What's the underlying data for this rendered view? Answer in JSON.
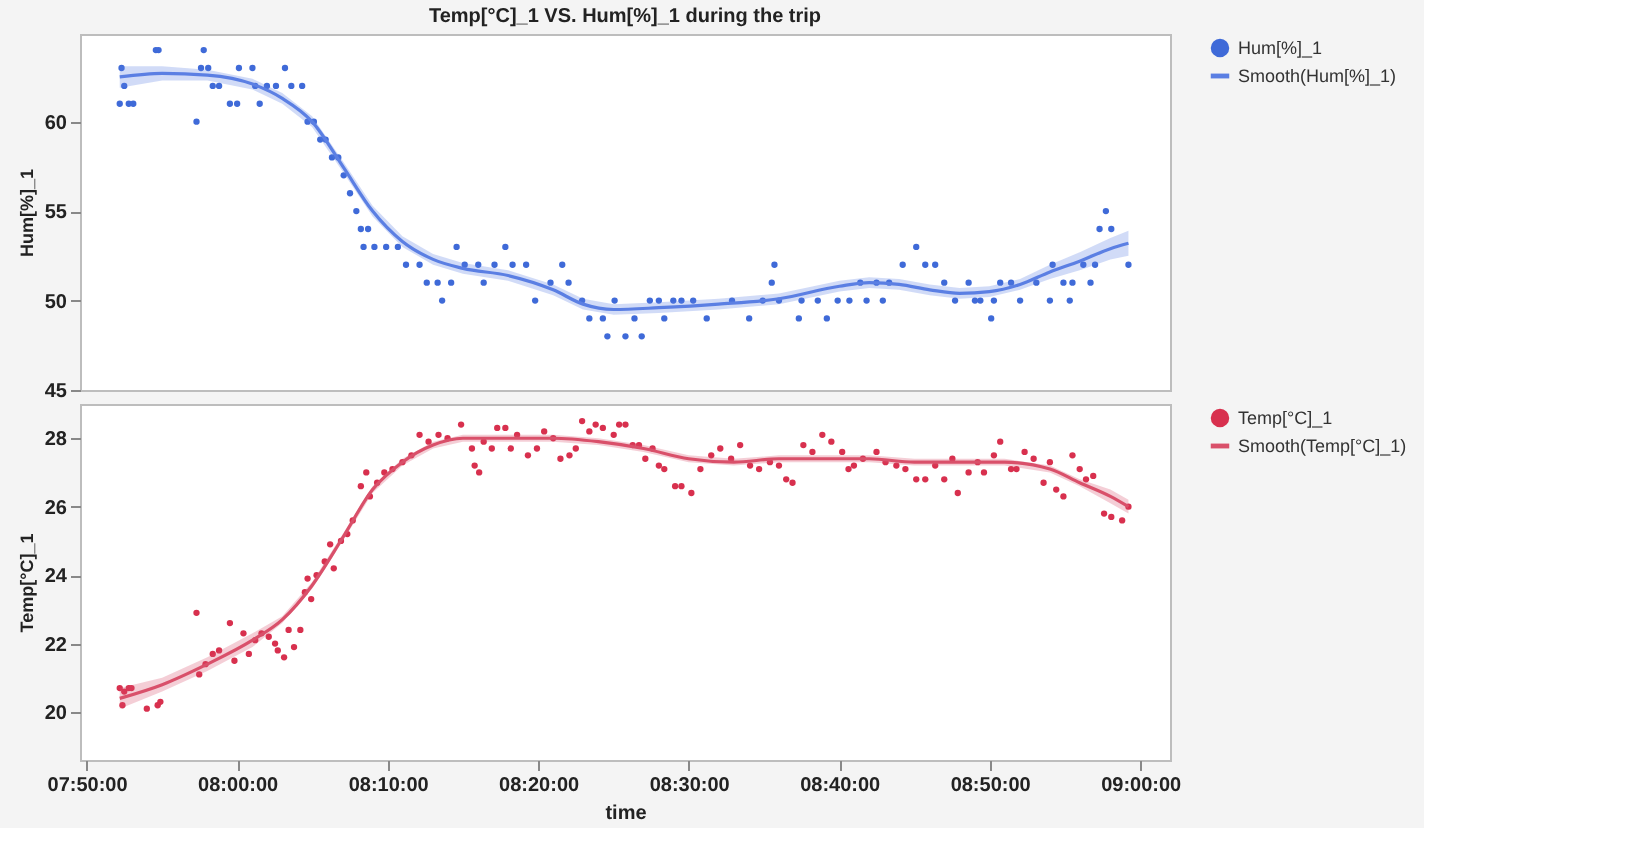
{
  "chart_data": [
    {
      "type": "scatter",
      "title": "Temp[°C]_1 VS. Hum[%]_1 during the trip",
      "ylabel": "Hum[%]_1",
      "xlim": [
        7.826,
        9.033
      ],
      "ylim": [
        45,
        64.9
      ],
      "yticks": [
        45,
        50,
        55,
        60
      ],
      "tick_labels": "y",
      "grid": false,
      "legend": "right",
      "series": [
        {
          "name": "Hum[%]_1",
          "marker": "circle",
          "color": "#3f6ad8",
          "x": [
            7.87,
            7.872,
            7.875,
            7.88,
            7.885,
            7.91,
            7.913,
            7.955,
            7.96,
            7.963,
            7.968,
            7.973,
            7.98,
            7.992,
            8.0,
            8.002,
            8.017,
            8.02,
            8.025,
            8.033,
            8.043,
            8.053,
            8.06,
            8.072,
            8.078,
            8.085,
            8.092,
            8.098,
            8.105,
            8.112,
            8.118,
            8.125,
            8.132,
            8.137,
            8.14,
            8.145,
            8.152,
            8.165,
            8.178,
            8.187,
            8.202,
            8.21,
            8.222,
            8.227,
            8.237,
            8.243,
            8.252,
            8.267,
            8.273,
            8.285,
            8.297,
            8.305,
            8.32,
            8.33,
            8.347,
            8.36,
            8.367,
            8.382,
            8.39,
            8.405,
            8.41,
            8.418,
            8.43,
            8.44,
            8.448,
            8.457,
            8.467,
            8.473,
            8.483,
            8.492,
            8.505,
            8.52,
            8.548,
            8.567,
            8.582,
            8.592,
            8.595,
            8.6,
            8.622,
            8.625,
            8.643,
            8.653,
            8.665,
            8.678,
            8.69,
            8.697,
            8.708,
            8.715,
            8.722,
            8.737,
            8.752,
            8.762,
            8.773,
            8.783,
            8.795,
            8.81,
            8.817,
            8.823,
            8.835,
            8.838,
            8.845,
            8.857,
            8.867,
            8.885,
            8.9,
            8.903,
            8.915,
            8.922,
            8.925,
            8.937,
            8.945,
            8.95,
            8.955,
            8.962,
            8.968,
            8.987
          ],
          "values": [
            61,
            63,
            62,
            61,
            61,
            64,
            64,
            60,
            63,
            64,
            63,
            62,
            62,
            61,
            61,
            63,
            63,
            62,
            61,
            62,
            62,
            63,
            62,
            62,
            60,
            60,
            59,
            59,
            58,
            58,
            57,
            56,
            55,
            54,
            53,
            54,
            53,
            53,
            53,
            52,
            52,
            51,
            51,
            50,
            51,
            53,
            52,
            52,
            51,
            52,
            53,
            52,
            52,
            50,
            51,
            52,
            51,
            50,
            49,
            49,
            48,
            50,
            48,
            49,
            48,
            50,
            50,
            49,
            50,
            50,
            50,
            49,
            50,
            49,
            50,
            51,
            52,
            50,
            49,
            50,
            50,
            49,
            50,
            50,
            51,
            50,
            51,
            50,
            51,
            52,
            53,
            52,
            52,
            51,
            50,
            51,
            50,
            50,
            49,
            50,
            51,
            51,
            50,
            51,
            50,
            52,
            51,
            50,
            51,
            52,
            51,
            52,
            54,
            55,
            54,
            52
          ]
        },
        {
          "name": "Smooth(Hum[%]_1)",
          "type": "line",
          "marker": "none",
          "line_style": "solid",
          "color": "#5b7fe3",
          "x": [
            7.87,
            7.917,
            7.967,
            8.017,
            8.05,
            8.083,
            8.117,
            8.15,
            8.183,
            8.217,
            8.25,
            8.3,
            8.35,
            8.383,
            8.417,
            8.467,
            8.533,
            8.6,
            8.667,
            8.7,
            8.733,
            8.767,
            8.8,
            8.833,
            8.867,
            8.9,
            8.933,
            8.967,
            8.987
          ],
          "values": [
            62.5,
            62.7,
            62.6,
            62.1,
            61.3,
            60.0,
            57.5,
            55.0,
            53.3,
            52.3,
            51.8,
            51.4,
            50.6,
            49.8,
            49.5,
            49.6,
            49.8,
            50.1,
            50.8,
            51.0,
            50.9,
            50.6,
            50.4,
            50.5,
            50.9,
            51.6,
            52.2,
            52.9,
            53.2
          ],
          "lower": [
            61.9,
            62.3,
            62.3,
            61.8,
            61.0,
            59.7,
            57.2,
            54.7,
            53.0,
            52.0,
            51.5,
            51.1,
            50.3,
            49.5,
            49.2,
            49.3,
            49.5,
            49.8,
            50.5,
            50.7,
            50.6,
            50.3,
            50.1,
            50.2,
            50.6,
            51.2,
            51.7,
            52.3,
            52.5
          ],
          "upper": [
            63.1,
            63.1,
            62.9,
            62.4,
            61.6,
            60.3,
            57.8,
            55.3,
            53.6,
            52.6,
            52.1,
            51.7,
            50.9,
            50.1,
            49.8,
            49.9,
            50.1,
            50.4,
            51.1,
            51.3,
            51.2,
            50.9,
            50.7,
            50.8,
            51.2,
            52.0,
            52.7,
            53.5,
            53.9
          ]
        }
      ]
    },
    {
      "type": "scatter",
      "ylabel": "Temp[°C]_1",
      "xlabel": "time",
      "xlim": [
        7.826,
        9.033
      ],
      "ylim": [
        18.6,
        29.0
      ],
      "yticks": [
        20,
        22,
        24,
        26,
        28
      ],
      "grid": false,
      "legend": "right",
      "xticks": [
        {
          "value": 7.8333,
          "label": "07:50:00"
        },
        {
          "value": 8,
          "label": "08:00:00"
        },
        {
          "value": 8.1667,
          "label": "08:10:00"
        },
        {
          "value": 8.3333,
          "label": "08:20:00"
        },
        {
          "value": 8.5,
          "label": "08:30:00"
        },
        {
          "value": 8.6667,
          "label": "08:40:00"
        },
        {
          "value": 8.8333,
          "label": "08:50:00"
        },
        {
          "value": 9,
          "label": "09:00:00"
        }
      ],
      "series": [
        {
          "name": "Temp[°C]_1",
          "marker": "circle",
          "color": "#d8304e",
          "x": [
            7.87,
            7.873,
            7.875,
            7.88,
            7.883,
            7.9,
            7.912,
            7.915,
            7.955,
            7.958,
            7.965,
            7.973,
            7.98,
            7.992,
            7.997,
            8.007,
            8.013,
            8.02,
            8.027,
            8.035,
            8.042,
            8.045,
            8.052,
            8.057,
            8.063,
            8.07,
            8.075,
            8.078,
            8.082,
            8.088,
            8.097,
            8.103,
            8.107,
            8.115,
            8.122,
            8.128,
            8.137,
            8.143,
            8.147,
            8.155,
            8.163,
            8.172,
            8.183,
            8.193,
            8.202,
            8.212,
            8.223,
            8.233,
            8.248,
            8.26,
            8.263,
            8.268,
            8.273,
            8.282,
            8.288,
            8.297,
            8.303,
            8.31,
            8.322,
            8.332,
            8.34,
            8.35,
            8.358,
            8.368,
            8.375,
            8.382,
            8.39,
            8.397,
            8.405,
            8.417,
            8.423,
            8.43,
            8.438,
            8.445,
            8.452,
            8.46,
            8.467,
            8.473,
            8.485,
            8.492,
            8.503,
            8.513,
            8.525,
            8.535,
            8.547,
            8.557,
            8.568,
            8.578,
            8.59,
            8.6,
            8.608,
            8.615,
            8.627,
            8.637,
            8.648,
            8.658,
            8.67,
            8.677,
            8.683,
            8.693,
            8.708,
            8.718,
            8.73,
            8.74,
            8.752,
            8.762,
            8.773,
            8.783,
            8.792,
            8.798,
            8.81,
            8.82,
            8.827,
            8.838,
            8.845,
            8.857,
            8.863,
            8.872,
            8.882,
            8.893,
            8.9,
            8.907,
            8.915,
            8.925,
            8.933,
            8.94,
            8.948,
            8.96,
            8.968,
            8.98,
            8.987
          ],
          "values": [
            20.7,
            20.2,
            20.6,
            20.7,
            20.7,
            20.1,
            20.2,
            20.3,
            22.9,
            21.1,
            21.4,
            21.7,
            21.8,
            22.6,
            21.5,
            22.3,
            21.7,
            22.1,
            22.3,
            22.2,
            22.0,
            21.8,
            21.6,
            22.4,
            21.9,
            22.4,
            23.5,
            23.9,
            23.3,
            24.0,
            24.4,
            24.9,
            24.2,
            25.0,
            25.2,
            25.6,
            26.6,
            27.0,
            26.3,
            26.7,
            27.0,
            27.1,
            27.3,
            27.5,
            28.1,
            27.9,
            28.1,
            28.0,
            28.4,
            27.7,
            27.2,
            27.0,
            27.9,
            27.7,
            28.3,
            28.3,
            27.7,
            28.1,
            27.5,
            27.7,
            28.2,
            28.0,
            27.4,
            27.5,
            27.7,
            28.5,
            28.2,
            28.4,
            28.3,
            28.1,
            28.4,
            28.4,
            27.8,
            27.8,
            27.4,
            27.7,
            27.2,
            27.1,
            26.6,
            26.6,
            26.4,
            27.1,
            27.5,
            27.7,
            27.4,
            27.8,
            27.2,
            27.1,
            27.3,
            27.2,
            26.8,
            26.7,
            27.8,
            27.6,
            28.1,
            27.9,
            27.6,
            27.1,
            27.2,
            27.4,
            27.6,
            27.3,
            27.2,
            27.1,
            26.8,
            26.8,
            27.2,
            26.8,
            27.4,
            26.4,
            27.0,
            27.3,
            27.0,
            27.5,
            27.9,
            27.1,
            27.1,
            27.6,
            27.4,
            26.7,
            27.3,
            26.5,
            26.3,
            27.5,
            27.1,
            26.8,
            26.9,
            25.8,
            25.7,
            25.6,
            26.0
          ]
        },
        {
          "name": "Smooth(Temp[°C]_1)",
          "type": "line",
          "marker": "none",
          "line_style": "solid",
          "color": "#d9506a",
          "x": [
            7.87,
            7.917,
            7.967,
            8.017,
            8.05,
            8.083,
            8.117,
            8.15,
            8.183,
            8.217,
            8.25,
            8.3,
            8.35,
            8.4,
            8.45,
            8.5,
            8.55,
            8.6,
            8.65,
            8.7,
            8.75,
            8.8,
            8.85,
            8.9,
            8.933,
            8.967,
            8.987
          ],
          "values": [
            20.4,
            20.8,
            21.4,
            22.1,
            22.7,
            23.7,
            25.1,
            26.5,
            27.3,
            27.8,
            28.0,
            28.0,
            28.0,
            27.9,
            27.7,
            27.4,
            27.3,
            27.4,
            27.4,
            27.4,
            27.3,
            27.3,
            27.3,
            27.1,
            26.7,
            26.3,
            26.0
          ],
          "lower": [
            20.1,
            20.6,
            21.2,
            21.9,
            22.6,
            23.6,
            25.0,
            26.4,
            27.2,
            27.7,
            27.9,
            27.9,
            27.9,
            27.8,
            27.6,
            27.3,
            27.2,
            27.3,
            27.3,
            27.3,
            27.2,
            27.2,
            27.2,
            27.0,
            26.6,
            26.1,
            25.8
          ],
          "upper": [
            20.7,
            21.0,
            21.6,
            22.3,
            22.8,
            23.8,
            25.2,
            26.6,
            27.4,
            27.9,
            28.1,
            28.1,
            28.1,
            28.0,
            27.8,
            27.5,
            27.4,
            27.5,
            27.5,
            27.5,
            27.4,
            27.4,
            27.4,
            27.2,
            26.8,
            26.5,
            26.2
          ]
        }
      ]
    }
  ]
}
